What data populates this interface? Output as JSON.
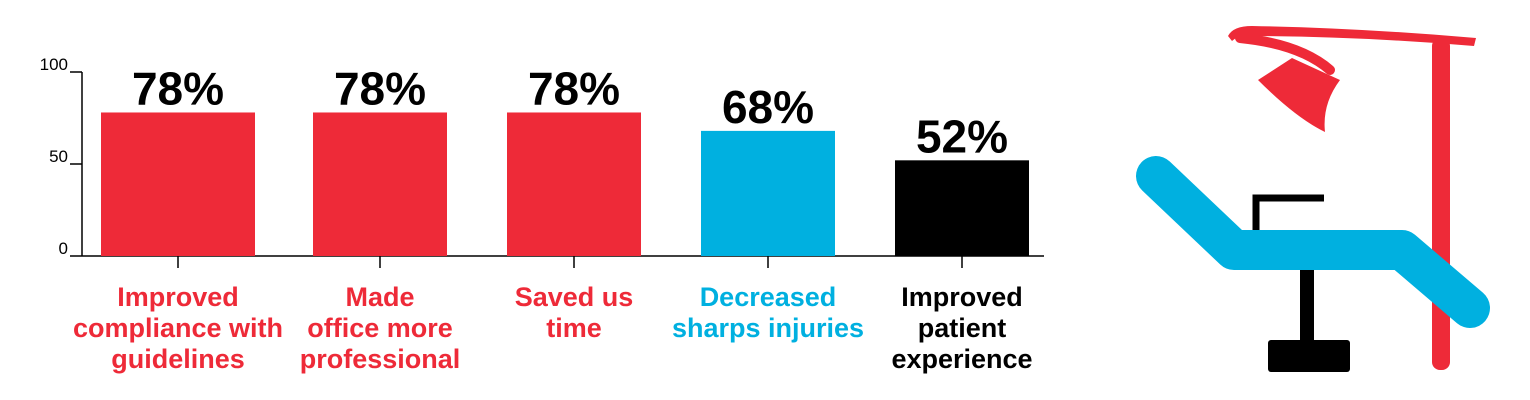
{
  "chart_data": {
    "type": "bar",
    "categories": [
      [
        "Improved",
        "compliance with",
        "guidelines"
      ],
      [
        "Made",
        "office more",
        "professional"
      ],
      [
        "Saved us",
        "time"
      ],
      [
        "Decreased",
        "sharps injuries"
      ],
      [
        "Improved",
        "patient",
        "experience"
      ]
    ],
    "values": [
      78,
      78,
      78,
      68,
      52
    ],
    "value_labels": [
      "78%",
      "78%",
      "78%",
      "68%",
      "52%"
    ],
    "bar_colors": [
      "#ee2a38",
      "#ee2a38",
      "#ee2a38",
      "#00b0e0",
      "#000000"
    ],
    "label_colors": [
      "#ee2a38",
      "#ee2a38",
      "#ee2a38",
      "#00b0e0",
      "#000000"
    ],
    "y_ticks": [
      0,
      50,
      100
    ],
    "y_tick_labels": [
      "0",
      "50",
      "100"
    ],
    "ylim": [
      0,
      100
    ],
    "grid": false
  },
  "illustration": {
    "icon": "dental-chair-icon",
    "colors": {
      "chair": "#00b0e0",
      "lamp": "#ee2a38",
      "base": "#000000"
    }
  }
}
